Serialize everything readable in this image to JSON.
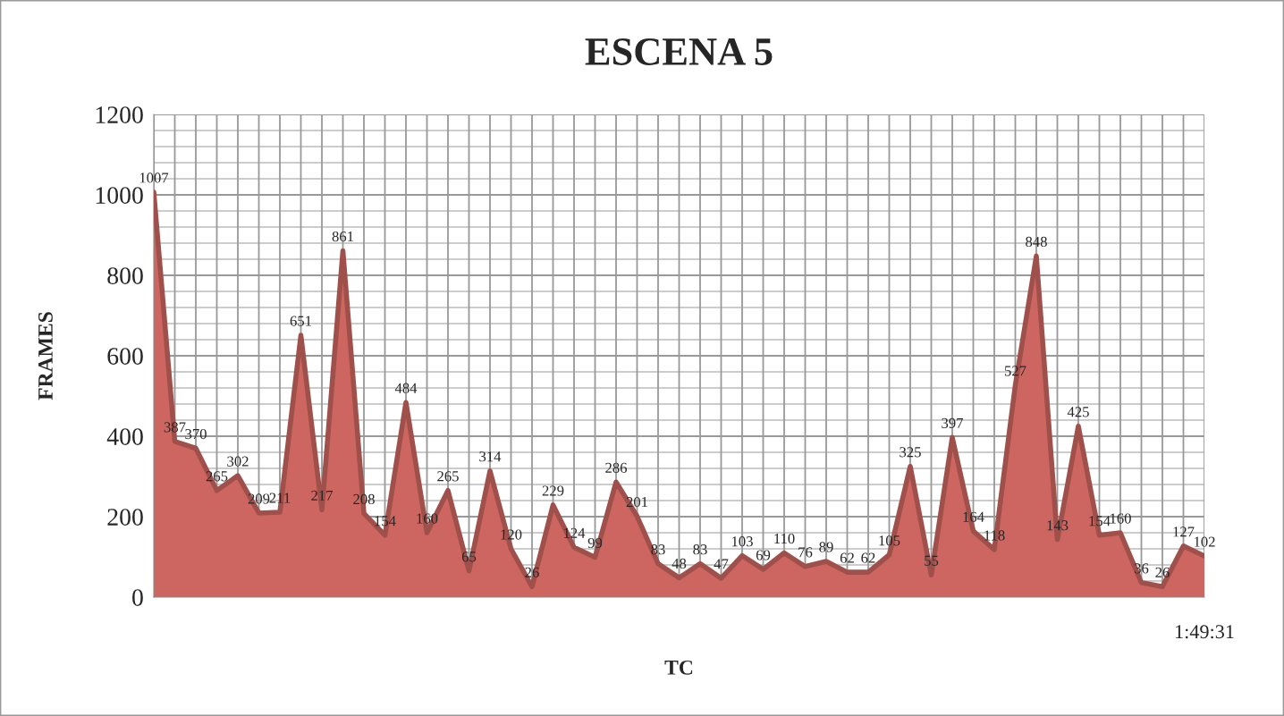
{
  "chart_data": {
    "type": "area",
    "title": "ESCENA 5",
    "xlabel": "TC",
    "ylabel": "FRAMES",
    "categories": [
      null,
      null,
      null,
      null,
      null,
      null,
      null,
      null,
      null,
      null,
      null,
      null,
      null,
      null,
      null,
      null,
      null,
      null,
      null,
      null,
      null,
      null,
      null,
      null,
      null,
      null,
      null,
      null,
      null,
      null,
      null,
      null,
      null,
      null,
      null,
      null,
      null,
      null,
      null,
      null,
      null,
      null,
      null,
      null,
      null,
      null,
      null,
      null,
      null,
      null,
      "1:49:31"
    ],
    "series": [
      {
        "color": "#cd6660",
        "values": [
          1007,
          387,
          370,
          265,
          302,
          209,
          211,
          651,
          217,
          861,
          208,
          154,
          484,
          160,
          265,
          65,
          314,
          120,
          26,
          229,
          124,
          99,
          286,
          201,
          83,
          48,
          83,
          47,
          103,
          69,
          110,
          76,
          89,
          62,
          62,
          105,
          325,
          55,
          397,
          164,
          118,
          527,
          848,
          143,
          425,
          154,
          160,
          36,
          26,
          127,
          102
        ]
      }
    ],
    "ylim": [
      0,
      1200
    ],
    "yticks": [
      0,
      200,
      400,
      600,
      800,
      1000,
      1200
    ],
    "grid": true,
    "data_labels": true,
    "legend": false
  }
}
